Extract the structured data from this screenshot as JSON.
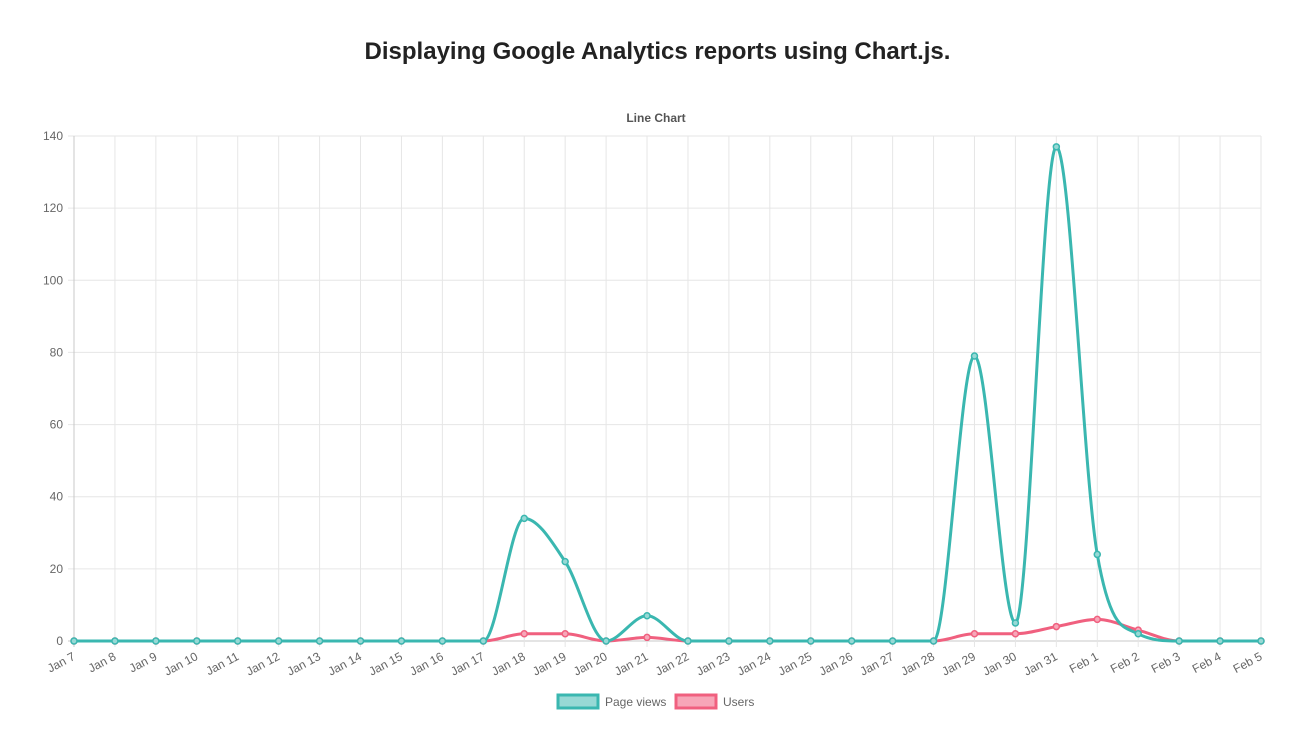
{
  "page": {
    "title": "Displaying Google Analytics reports using Chart.js."
  },
  "chart_data": {
    "type": "line",
    "title": "Line Chart",
    "xlabel": "",
    "ylabel": "",
    "categories": [
      "Jan 7",
      "Jan 8",
      "Jan 9",
      "Jan 10",
      "Jan 11",
      "Jan 12",
      "Jan 13",
      "Jan 14",
      "Jan 15",
      "Jan 16",
      "Jan 17",
      "Jan 18",
      "Jan 19",
      "Jan 20",
      "Jan 21",
      "Jan 22",
      "Jan 23",
      "Jan 24",
      "Jan 25",
      "Jan 26",
      "Jan 27",
      "Jan 28",
      "Jan 29",
      "Jan 30",
      "Jan 31",
      "Feb 1",
      "Feb 2",
      "Feb 3",
      "Feb 4",
      "Feb 5"
    ],
    "ylim": [
      0,
      140
    ],
    "yticks": [
      0,
      20,
      40,
      60,
      80,
      100,
      120,
      140
    ],
    "grid": true,
    "legend_position": "bottom",
    "series": [
      {
        "name": "Page views",
        "color": "#3ab7b0",
        "fill": "#97d9d5",
        "values": [
          0,
          0,
          0,
          0,
          0,
          0,
          0,
          0,
          0,
          0,
          0,
          34,
          22,
          0,
          7,
          0,
          0,
          0,
          0,
          0,
          0,
          0,
          79,
          5,
          137,
          24,
          2,
          0,
          0,
          0
        ]
      },
      {
        "name": "Users",
        "color": "#f0607f",
        "fill": "#f7a6b8",
        "values": [
          0,
          0,
          0,
          0,
          0,
          0,
          0,
          0,
          0,
          0,
          0,
          2,
          2,
          0,
          1,
          0,
          0,
          0,
          0,
          0,
          0,
          0,
          2,
          2,
          4,
          6,
          3,
          0,
          0,
          0
        ]
      }
    ]
  }
}
